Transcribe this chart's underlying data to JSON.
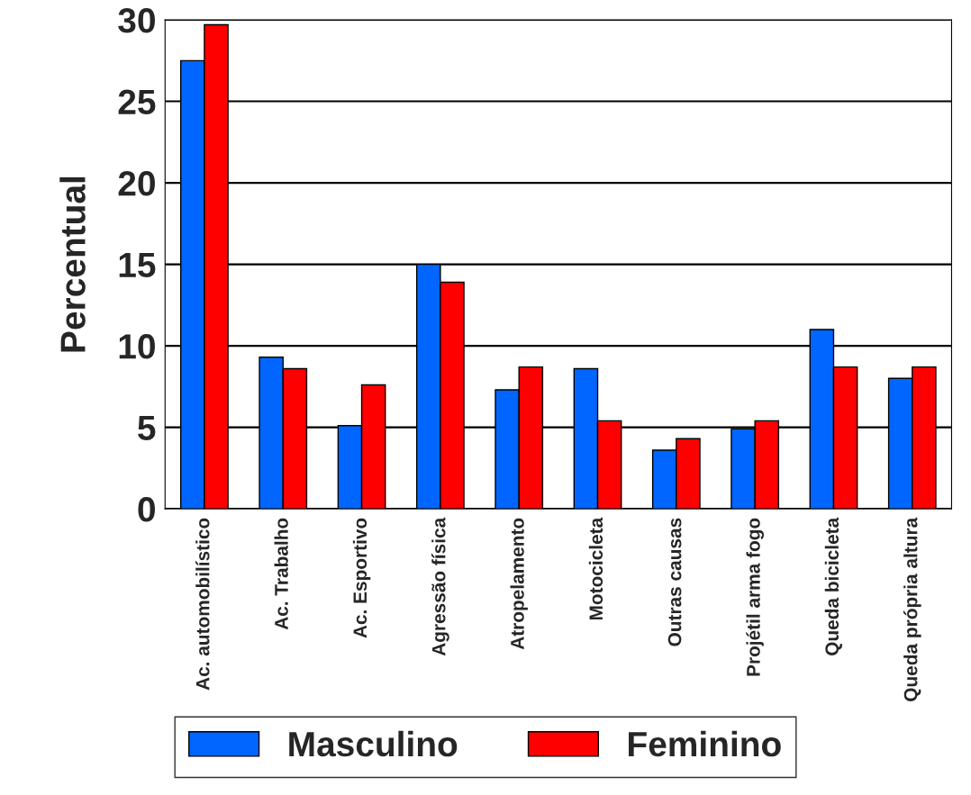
{
  "chart_data": {
    "type": "bar",
    "ylabel": "Percentual",
    "categories": [
      "Ac. automobilístico",
      "Ac. Trabalho",
      "Ac. Esportivo",
      "Agressão física",
      "Atropelamento",
      "Motocicleta",
      "Outras causas",
      "Projétil arma fogo",
      "Queda bicicleta",
      "Queda própria altura"
    ],
    "series": [
      {
        "name": "Masculino",
        "color": "#0066ff",
        "values": [
          27.5,
          9.3,
          5.1,
          15.0,
          7.3,
          8.6,
          3.6,
          4.9,
          11.0,
          8.0
        ]
      },
      {
        "name": "Feminino",
        "color": "#ff0000",
        "values": [
          29.7,
          8.6,
          7.6,
          13.9,
          8.7,
          5.4,
          4.3,
          5.4,
          8.7,
          8.7
        ]
      }
    ],
    "ylim": [
      0,
      30
    ],
    "yticks": [
      0,
      5,
      10,
      15,
      20,
      25,
      30
    ],
    "grid": "y",
    "legend": "bottom"
  }
}
